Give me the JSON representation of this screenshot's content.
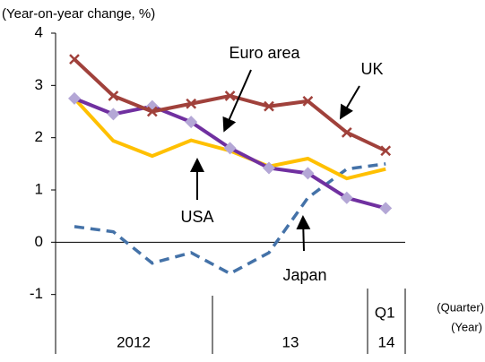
{
  "chart_data": {
    "type": "line",
    "y_label": "(Year-on-year change, %)",
    "categories": [
      null,
      null,
      null,
      null,
      null,
      null,
      null,
      null,
      "Q1"
    ],
    "year_labels": [
      "2012",
      "13",
      "14"
    ],
    "quarter_unit": "(Quarter)",
    "year_unit": "(Year)",
    "ylim": [
      -2,
      4
    ],
    "yticks": [
      -1,
      0,
      1,
      2,
      3,
      4
    ],
    "series": [
      {
        "name": "UK",
        "color": "#a0413b",
        "marker": "x",
        "values": [
          3.5,
          2.8,
          2.5,
          2.65,
          2.8,
          2.6,
          2.7,
          2.1,
          1.75
        ]
      },
      {
        "name": "Euro area",
        "color": "#7030a0",
        "marker": "diamond",
        "values": [
          2.75,
          2.45,
          2.6,
          2.3,
          1.8,
          1.42,
          1.32,
          0.85,
          0.65
        ]
      },
      {
        "name": "USA",
        "color": "#ffc000",
        "marker": "none",
        "values": [
          2.75,
          1.94,
          1.65,
          1.95,
          1.75,
          1.45,
          1.6,
          1.22,
          1.4
        ]
      },
      {
        "name": "Japan",
        "color": "#4472a8",
        "marker": "none",
        "dashed": true,
        "values": [
          0.3,
          0.2,
          -0.4,
          -0.2,
          -0.6,
          -0.2,
          0.85,
          1.4,
          1.5
        ]
      }
    ]
  }
}
